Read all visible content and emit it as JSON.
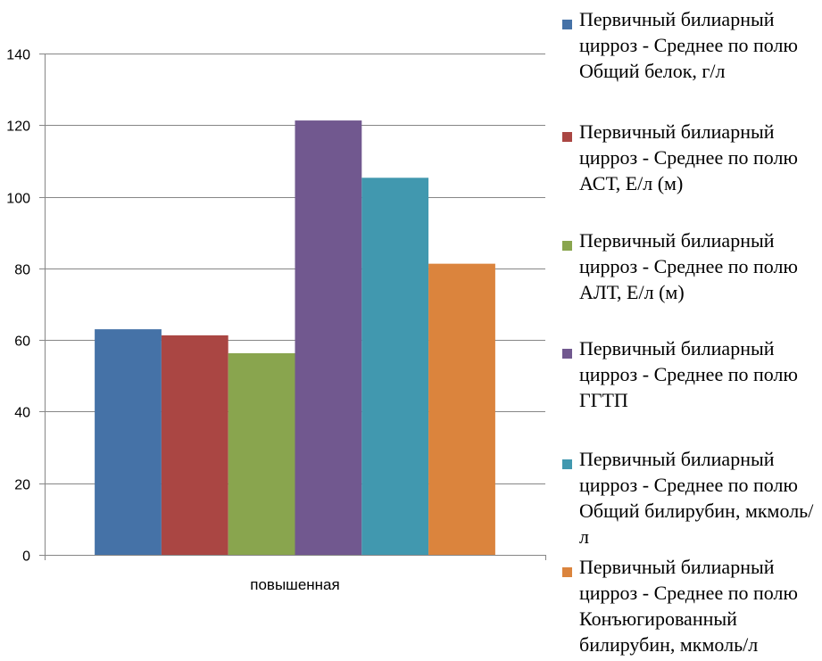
{
  "chart_data": {
    "type": "bar",
    "categories": [
      "повышенная"
    ],
    "ylim": [
      0,
      140
    ],
    "ytick_step": 20,
    "grid": true,
    "legend_position": "right",
    "series": [
      {
        "name": "Первичный билиарный цирроз - Среднее по полю Общий белок, г/л",
        "values": [
          63
        ],
        "color": "#4572A7"
      },
      {
        "name": "Первичный билиарный цирроз - Среднее по полю АСТ, Е/л (м)",
        "values": [
          61.3
        ],
        "color": "#AA4643"
      },
      {
        "name": "Первичный билиарный цирроз - Среднее по полю АЛТ, Е/л (м)",
        "values": [
          56.3
        ],
        "color": "#89A54E"
      },
      {
        "name": "Первичный билиарный цирроз - Среднее по полю ГГТП",
        "values": [
          121.3
        ],
        "color": "#71588F"
      },
      {
        "name": "Первичный билиарный цирроз - Среднее по полю Общий билирубин, мкмоль/л",
        "values": [
          105.3
        ],
        "color": "#4198AF"
      },
      {
        "name": "Первичный билиарный цирроз - Среднее по полю Конъюгированный билирубин, мкмоль/л",
        "values": [
          81.3
        ],
        "color": "#DB843D"
      }
    ]
  }
}
